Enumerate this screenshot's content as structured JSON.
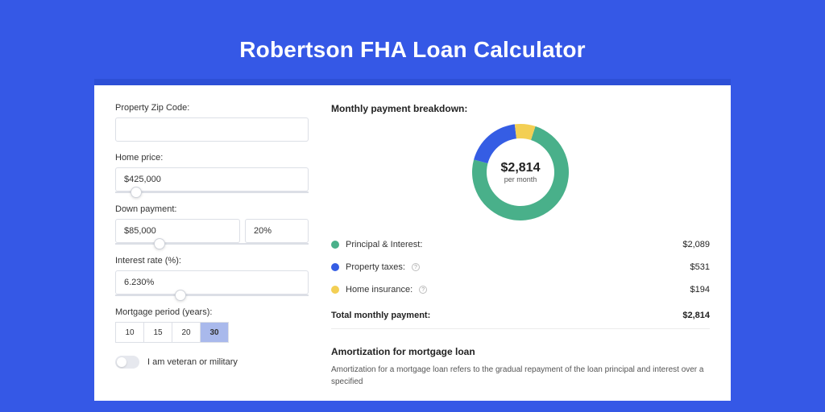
{
  "page": {
    "title": "Robertson FHA Loan Calculator",
    "background_color": "#3558e6",
    "card_border_color": "#2d4fd6"
  },
  "form": {
    "zip_label": "Property Zip Code:",
    "zip_value": "",
    "home_price_label": "Home price:",
    "home_price_value": "$425,000",
    "home_price_slider_pct": 8,
    "down_payment_label": "Down payment:",
    "down_payment_value": "$85,000",
    "down_payment_pct": "20%",
    "down_payment_slider_pct": 20,
    "interest_label": "Interest rate (%):",
    "interest_value": "6.230%",
    "interest_slider_pct": 31,
    "period_label": "Mortgage period (years):",
    "periods": [
      "10",
      "15",
      "20",
      "30"
    ],
    "period_selected": "30",
    "veteran_label": "I am veteran or military",
    "veteran_on": false
  },
  "breakdown": {
    "title": "Monthly payment breakdown:",
    "center_amount": "$2,814",
    "center_sub": "per month",
    "donut": {
      "size": 124,
      "thickness": 18,
      "slices": [
        {
          "name": "principal_interest",
          "value": 2089,
          "pct": 0.742,
          "color": "#49b08a"
        },
        {
          "name": "property_taxes",
          "value": 531,
          "pct": 0.189,
          "color": "#355de4"
        },
        {
          "name": "home_insurance",
          "value": 194,
          "pct": 0.069,
          "color": "#f3cf54"
        }
      ],
      "start_angle_deg": -72
    },
    "rows": [
      {
        "swatch": "#49b08a",
        "label": "Principal & Interest:",
        "info": false,
        "value": "$2,089"
      },
      {
        "swatch": "#355de4",
        "label": "Property taxes:",
        "info": true,
        "value": "$531"
      },
      {
        "swatch": "#f3cf54",
        "label": "Home insurance:",
        "info": true,
        "value": "$194"
      }
    ],
    "total_label": "Total monthly payment:",
    "total_value": "$2,814"
  },
  "amortization": {
    "title": "Amortization for mortgage loan",
    "text": "Amortization for a mortgage loan refers to the gradual repayment of the loan principal and interest over a specified"
  }
}
